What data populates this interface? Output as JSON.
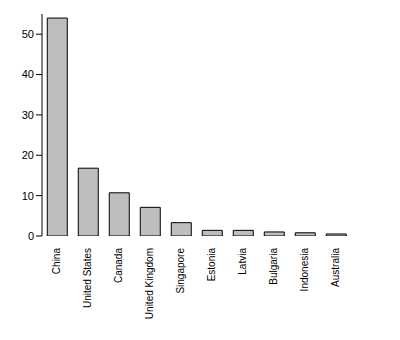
{
  "chart_data": {
    "type": "bar",
    "categories": [
      "China",
      "United States",
      "Canada",
      "United Kingdom",
      "Singapore",
      "Estonia",
      "Latvia",
      "Bulgaria",
      "Indonesia",
      "Australia"
    ],
    "values": [
      54,
      16.8,
      10.7,
      7.1,
      3.3,
      1.4,
      1.4,
      1.0,
      0.8,
      0.5
    ],
    "color": "#bebebe",
    "ylim": [
      0,
      55
    ],
    "yticks": [
      0,
      10,
      20,
      30,
      40,
      50
    ],
    "grid": false
  }
}
